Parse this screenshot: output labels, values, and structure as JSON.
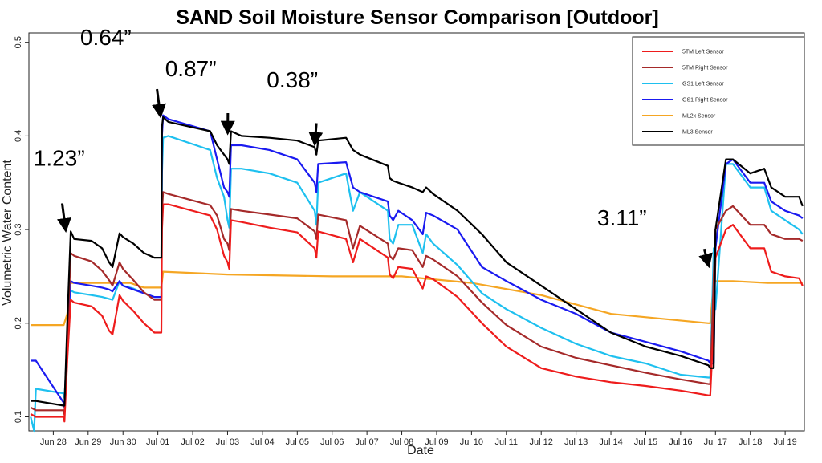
{
  "chart_data": {
    "type": "line",
    "title": "SAND Soil Moisture Sensor Comparison [Outdoor]",
    "xlabel": "Date",
    "ylabel": "Volumetric Water Content",
    "xlim": [
      27.3,
      49.55
    ],
    "ylim": [
      0.085,
      0.51
    ],
    "yticks": [
      0.1,
      0.2,
      0.3,
      0.4,
      0.5
    ],
    "ytick_labels": [
      "0.1",
      "0.2",
      "0.3",
      "0.4",
      "0.5"
    ],
    "x_tick_positions": [
      28,
      29,
      30,
      31,
      32,
      33,
      34,
      35,
      36,
      37,
      38,
      39,
      40,
      41,
      42,
      43,
      44,
      45,
      46,
      47,
      48,
      49
    ],
    "x_tick_labels": [
      "Jun 28",
      "Jun 29",
      "Jun 30",
      "Jul 01",
      "Jul 02",
      "Jul 03",
      "Jul 04",
      "Jul 05",
      "Jul 06",
      "Jul 07",
      "Jul 08",
      "Jul 09",
      "Jul 10",
      "Jul 11",
      "Jul 12",
      "Jul 13",
      "Jul 14",
      "Jul 15",
      "Jul 16",
      "Jul 17",
      "Jul 18",
      "Jul 19"
    ],
    "grid": false,
    "legend_position": "top-right",
    "series": [
      {
        "name": "5TM Left Sensor",
        "color": "#ee1c1c",
        "x": [
          27.35,
          27.5,
          28.3,
          28.32,
          28.4,
          28.5,
          28.6,
          29.1,
          29.4,
          29.6,
          29.7,
          29.9,
          30.0,
          30.3,
          30.6,
          30.9,
          31.1,
          31.12,
          31.15,
          31.3,
          32.5,
          32.7,
          32.9,
          33.0,
          33.05,
          33.1,
          33.4,
          34.2,
          35.0,
          35.5,
          35.55,
          35.6,
          36.4,
          36.6,
          36.8,
          37.6,
          37.65,
          37.75,
          37.9,
          38.3,
          38.6,
          38.7,
          38.9,
          39.6,
          40.3,
          41.0,
          42.0,
          43.0,
          44.0,
          45.0,
          46.0,
          46.8,
          46.85,
          46.95,
          47.0,
          47.3,
          47.5,
          48.0,
          48.4,
          48.6,
          49.0,
          49.4,
          49.5
        ],
        "y": [
          0.103,
          0.1,
          0.1,
          0.095,
          0.16,
          0.225,
          0.222,
          0.218,
          0.208,
          0.192,
          0.188,
          0.23,
          0.224,
          0.213,
          0.2,
          0.19,
          0.19,
          0.3,
          0.327,
          0.327,
          0.315,
          0.3,
          0.272,
          0.265,
          0.258,
          0.31,
          0.308,
          0.302,
          0.297,
          0.28,
          0.27,
          0.298,
          0.29,
          0.265,
          0.29,
          0.27,
          0.252,
          0.248,
          0.26,
          0.258,
          0.237,
          0.25,
          0.247,
          0.228,
          0.2,
          0.175,
          0.152,
          0.143,
          0.137,
          0.133,
          0.128,
          0.123,
          0.123,
          0.2,
          0.27,
          0.3,
          0.305,
          0.28,
          0.28,
          0.255,
          0.25,
          0.248,
          0.24
        ]
      },
      {
        "name": "5TM Right Sensor",
        "color": "#a52a2a",
        "x": [
          27.35,
          27.5,
          28.3,
          28.32,
          28.4,
          28.5,
          28.6,
          29.1,
          29.4,
          29.6,
          29.7,
          29.9,
          30.0,
          30.3,
          30.6,
          30.9,
          31.1,
          31.12,
          31.15,
          31.3,
          32.5,
          32.7,
          32.9,
          33.0,
          33.05,
          33.1,
          33.4,
          34.2,
          35.0,
          35.5,
          35.55,
          35.6,
          36.4,
          36.6,
          36.8,
          37.6,
          37.65,
          37.75,
          37.9,
          38.3,
          38.6,
          38.7,
          38.9,
          39.6,
          40.3,
          41.0,
          42.0,
          43.0,
          44.0,
          45.0,
          46.0,
          46.8,
          46.85,
          46.95,
          47.0,
          47.3,
          47.5,
          48.0,
          48.4,
          48.6,
          49.0,
          49.4,
          49.5
        ],
        "y": [
          0.11,
          0.107,
          0.107,
          0.102,
          0.185,
          0.275,
          0.272,
          0.266,
          0.256,
          0.246,
          0.24,
          0.265,
          0.258,
          0.246,
          0.233,
          0.225,
          0.225,
          0.32,
          0.34,
          0.338,
          0.326,
          0.315,
          0.29,
          0.285,
          0.278,
          0.322,
          0.32,
          0.316,
          0.312,
          0.298,
          0.29,
          0.316,
          0.31,
          0.28,
          0.304,
          0.285,
          0.272,
          0.268,
          0.28,
          0.278,
          0.26,
          0.272,
          0.268,
          0.25,
          0.222,
          0.198,
          0.175,
          0.163,
          0.155,
          0.147,
          0.14,
          0.135,
          0.135,
          0.25,
          0.3,
          0.32,
          0.325,
          0.305,
          0.305,
          0.295,
          0.29,
          0.29,
          0.288
        ]
      },
      {
        "name": "GS1 Left Sensor",
        "color": "#1ec0ef",
        "x": [
          27.35,
          27.45,
          27.5,
          28.3,
          28.32,
          28.4,
          28.5,
          28.6,
          29.1,
          29.4,
          29.6,
          29.7,
          29.9,
          30.0,
          30.3,
          30.6,
          30.9,
          31.1,
          31.12,
          31.15,
          31.3,
          32.5,
          32.7,
          32.9,
          33.0,
          33.05,
          33.1,
          33.4,
          34.2,
          35.0,
          35.5,
          35.55,
          35.6,
          36.4,
          36.6,
          36.8,
          37.6,
          37.65,
          37.75,
          37.9,
          38.3,
          38.6,
          38.7,
          38.9,
          39.6,
          40.3,
          41.0,
          42.0,
          43.0,
          44.0,
          45.0,
          46.0,
          46.8,
          46.85,
          46.95,
          47.0,
          47.3,
          47.5,
          48.0,
          48.4,
          48.6,
          49.0,
          49.4,
          49.5
        ],
        "y": [
          0.1,
          0.085,
          0.13,
          0.125,
          0.12,
          0.175,
          0.235,
          0.233,
          0.23,
          0.228,
          0.226,
          0.225,
          0.245,
          0.24,
          0.237,
          0.232,
          0.228,
          0.228,
          0.36,
          0.398,
          0.4,
          0.385,
          0.355,
          0.335,
          0.31,
          0.302,
          0.365,
          0.365,
          0.36,
          0.35,
          0.32,
          0.305,
          0.35,
          0.36,
          0.32,
          0.34,
          0.32,
          0.29,
          0.285,
          0.305,
          0.305,
          0.275,
          0.295,
          0.285,
          0.262,
          0.232,
          0.215,
          0.195,
          0.178,
          0.165,
          0.157,
          0.145,
          0.142,
          0.142,
          0.28,
          0.215,
          0.37,
          0.37,
          0.345,
          0.345,
          0.32,
          0.31,
          0.3,
          0.295
        ]
      },
      {
        "name": "GS1 Right Sensor",
        "color": "#1a1af0",
        "x": [
          27.35,
          27.5,
          28.3,
          28.32,
          28.4,
          28.5,
          28.6,
          29.1,
          29.4,
          29.6,
          29.7,
          29.9,
          30.0,
          30.3,
          30.6,
          30.9,
          31.1,
          31.12,
          31.15,
          31.3,
          32.5,
          32.7,
          32.9,
          33.0,
          33.05,
          33.1,
          33.4,
          34.2,
          35.0,
          35.5,
          35.55,
          35.6,
          36.4,
          36.6,
          36.8,
          37.6,
          37.65,
          37.75,
          37.9,
          38.3,
          38.6,
          38.7,
          38.9,
          39.6,
          40.3,
          41.0,
          42.0,
          43.0,
          44.0,
          45.0,
          46.0,
          46.8,
          46.85,
          46.95,
          47.0,
          47.3,
          47.5,
          48.0,
          48.4,
          48.6,
          49.0,
          49.4,
          49.5
        ],
        "y": [
          0.16,
          0.16,
          0.115,
          0.11,
          0.19,
          0.245,
          0.243,
          0.24,
          0.238,
          0.236,
          0.234,
          0.245,
          0.24,
          0.236,
          0.232,
          0.228,
          0.228,
          0.4,
          0.422,
          0.418,
          0.405,
          0.375,
          0.345,
          0.34,
          0.335,
          0.39,
          0.39,
          0.385,
          0.375,
          0.35,
          0.34,
          0.37,
          0.372,
          0.345,
          0.34,
          0.33,
          0.315,
          0.31,
          0.32,
          0.31,
          0.295,
          0.318,
          0.315,
          0.3,
          0.26,
          0.245,
          0.225,
          0.21,
          0.19,
          0.18,
          0.17,
          0.16,
          0.157,
          0.157,
          0.28,
          0.37,
          0.375,
          0.35,
          0.35,
          0.33,
          0.32,
          0.315,
          0.312
        ]
      },
      {
        "name": "ML2x Sensor",
        "color": "#f5a623",
        "x": [
          27.35,
          28.3,
          28.4,
          28.5,
          29.5,
          30.2,
          30.6,
          31.1,
          31.15,
          33.0,
          36.0,
          38.0,
          40.0,
          42.0,
          44.0,
          46.8,
          46.85,
          46.95,
          47.5,
          48.5,
          49.5
        ],
        "y": [
          0.198,
          0.198,
          0.21,
          0.243,
          0.243,
          0.243,
          0.238,
          0.238,
          0.255,
          0.252,
          0.25,
          0.25,
          0.243,
          0.23,
          0.21,
          0.2,
          0.2,
          0.245,
          0.245,
          0.243,
          0.243
        ]
      },
      {
        "name": "ML3 Sensor",
        "color": "#000000",
        "x": [
          27.35,
          27.5,
          28.3,
          28.32,
          28.4,
          28.5,
          28.6,
          29.1,
          29.4,
          29.6,
          29.7,
          29.9,
          30.0,
          30.3,
          30.6,
          30.9,
          31.1,
          31.12,
          31.15,
          31.3,
          32.5,
          32.7,
          32.9,
          33.0,
          33.05,
          33.1,
          33.4,
          34.2,
          35.0,
          35.5,
          35.55,
          35.6,
          36.4,
          36.6,
          36.8,
          37.6,
          37.65,
          37.75,
          37.9,
          38.3,
          38.6,
          38.7,
          38.9,
          39.6,
          40.3,
          41.0,
          42.0,
          43.0,
          44.0,
          45.0,
          46.0,
          46.8,
          46.85,
          46.95,
          47.0,
          47.3,
          47.5,
          48.0,
          48.4,
          48.6,
          49.0,
          49.4,
          49.5
        ],
        "y": [
          0.117,
          0.117,
          0.112,
          0.112,
          0.2,
          0.298,
          0.29,
          0.288,
          0.28,
          0.265,
          0.26,
          0.296,
          0.292,
          0.285,
          0.275,
          0.27,
          0.27,
          0.41,
          0.42,
          0.415,
          0.405,
          0.39,
          0.38,
          0.375,
          0.37,
          0.405,
          0.4,
          0.398,
          0.395,
          0.388,
          0.38,
          0.395,
          0.398,
          0.385,
          0.38,
          0.368,
          0.355,
          0.352,
          0.35,
          0.345,
          0.34,
          0.345,
          0.338,
          0.32,
          0.295,
          0.265,
          0.24,
          0.215,
          0.19,
          0.175,
          0.165,
          0.155,
          0.152,
          0.152,
          0.3,
          0.375,
          0.375,
          0.36,
          0.365,
          0.345,
          0.335,
          0.335,
          0.325
        ]
      }
    ],
    "annotations": [
      {
        "text": "1.23”",
        "x": 28.4,
        "y": 0.298
      },
      {
        "text": "0.64”",
        "x": 31.12,
        "y": 0.42
      },
      {
        "text": "0.87”",
        "x": 33.05,
        "y": 0.402
      },
      {
        "text": "0.38”",
        "x": 35.55,
        "y": 0.39
      },
      {
        "text": "3.11”",
        "x": 46.85,
        "y": 0.26
      }
    ]
  }
}
